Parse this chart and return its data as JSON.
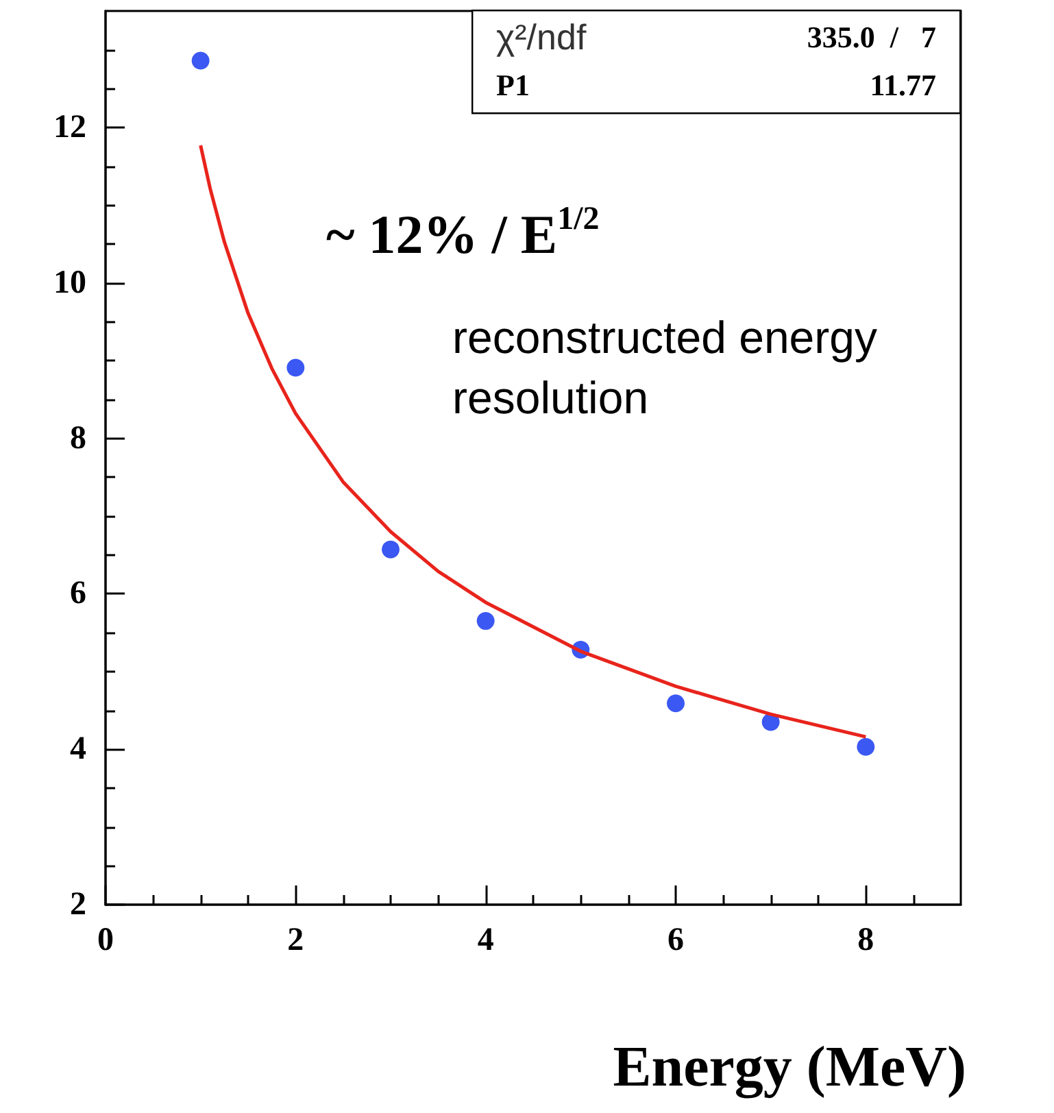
{
  "chart_data": {
    "type": "scatter",
    "xlabel": "Energy (MeV)",
    "xlim": [
      0,
      9
    ],
    "xticks": [
      0,
      2,
      4,
      6,
      8
    ],
    "ylim": [
      2,
      13.5
    ],
    "yticks": [
      2,
      4,
      6,
      8,
      10,
      12
    ],
    "grid": false,
    "marker": "circle",
    "series": [
      {
        "color": "#0a2ef0",
        "x": [
          1,
          2,
          3,
          4,
          5,
          6,
          7,
          8
        ],
        "values": [
          12.86,
          8.91,
          6.57,
          5.65,
          5.28,
          4.59,
          4.35,
          4.03
        ]
      },
      {
        "type": "line",
        "color": "#e8241c",
        "marker": "none",
        "line_style": "solid",
        "x": [
          1,
          1.1,
          1.25,
          1.5,
          1.75,
          2,
          2.5,
          3,
          3.5,
          4,
          5,
          6,
          7,
          8
        ],
        "values": [
          11.77,
          11.22,
          10.53,
          9.61,
          8.9,
          8.32,
          7.44,
          6.8,
          6.29,
          5.89,
          5.26,
          4.81,
          4.45,
          4.16
        ]
      }
    ],
    "annotations": [
      "χ²/ndf",
      "335.0  /   7",
      "P1",
      "11.77",
      "~ 12% / E$^{1/2}$",
      "reconstructed energy\nresolution"
    ]
  }
}
